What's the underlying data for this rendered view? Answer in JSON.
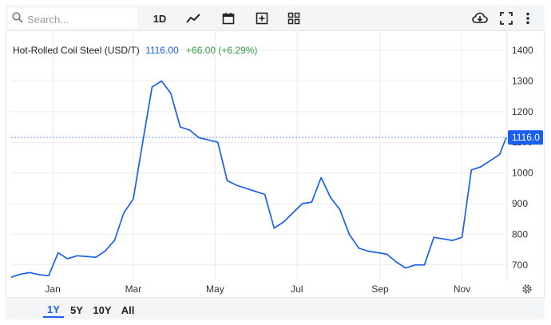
{
  "toolbar": {
    "search_placeholder": "Search...",
    "interval_label": "1D",
    "icons": [
      "line-chart-icon",
      "calendar-icon",
      "add-indicator-icon",
      "layout-grid-icon",
      "cloud-download-icon",
      "fullscreen-icon",
      "more-vert-icon"
    ]
  },
  "legend": {
    "name": "Hot-Rolled Coil Steel (USD/T)",
    "value": "1116.00",
    "change": "+66.00 (+6.29%)"
  },
  "ranges": [
    "1Y",
    "5Y",
    "10Y",
    "All"
  ],
  "active_range": "1Y",
  "colors": {
    "line": "#1a5ff0",
    "change_positive": "#2ea043",
    "grid": "#ececec"
  },
  "chart_data": {
    "type": "line",
    "series": [
      {
        "name": "Hot-Rolled Coil Steel (USD/T)",
        "x": [
          "2023-12-01",
          "2023-12-08",
          "2023-12-15",
          "2023-12-22",
          "2023-12-29",
          "2024-01-05",
          "2024-01-12",
          "2024-01-19",
          "2024-01-26",
          "2024-02-02",
          "2024-02-09",
          "2024-02-16",
          "2024-02-23",
          "2024-03-01",
          "2024-03-08",
          "2024-03-15",
          "2024-03-22",
          "2024-03-29",
          "2024-04-05",
          "2024-04-12",
          "2024-04-19",
          "2024-04-26",
          "2024-05-03",
          "2024-05-10",
          "2024-05-17",
          "2024-05-24",
          "2024-05-31",
          "2024-06-07",
          "2024-06-14",
          "2024-06-21",
          "2024-06-28",
          "2024-07-05",
          "2024-07-12",
          "2024-07-19",
          "2024-07-26",
          "2024-08-02",
          "2024-08-09",
          "2024-08-16",
          "2024-08-23",
          "2024-08-30",
          "2024-09-06",
          "2024-09-13",
          "2024-09-20",
          "2024-09-27",
          "2024-10-04",
          "2024-10-11",
          "2024-10-18",
          "2024-10-25",
          "2024-11-01",
          "2024-11-08",
          "2024-11-15",
          "2024-11-22",
          "2024-11-29",
          "2024-12-04"
        ],
        "values": [
          660,
          670,
          675,
          668,
          665,
          740,
          720,
          730,
          728,
          725,
          745,
          780,
          870,
          915,
          1100,
          1280,
          1300,
          1260,
          1150,
          1140,
          1115,
          1108,
          1100,
          975,
          960,
          950,
          940,
          930,
          820,
          840,
          870,
          900,
          905,
          985,
          920,
          880,
          800,
          755,
          745,
          740,
          735,
          710,
          690,
          700,
          700,
          790,
          785,
          780,
          790,
          1010,
          1020,
          1040,
          1060,
          1116
        ]
      }
    ],
    "xlabel": "",
    "ylabel": "",
    "x_tick_labels": [
      "Jan",
      "Mar",
      "May",
      "Jul",
      "Sep",
      "Nov"
    ],
    "y_ticks": [
      700,
      800,
      900,
      1000,
      1100,
      1200,
      1300,
      1400
    ],
    "ylim": [
      650,
      1460
    ],
    "last_value_label": "1116.0",
    "grid": true
  }
}
